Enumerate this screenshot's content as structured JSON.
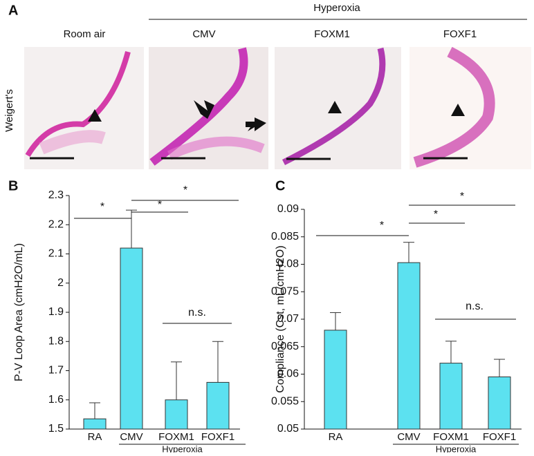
{
  "panel_a": {
    "panel": "A",
    "group": "Hyperoxia",
    "columns": [
      "Room air",
      "CMV",
      "FOXM1",
      "FOXF1"
    ],
    "row_label": "Weigert's"
  },
  "chart_data": [
    {
      "type": "bar",
      "panel": "B",
      "y_label": "P-V Loop Area (cmH2O/mL)",
      "categories": [
        "RA",
        "CMV",
        "FOXM1",
        "FOXF1"
      ],
      "values": [
        1.535,
        2.12,
        1.6,
        1.66
      ],
      "errors": [
        0.055,
        0.13,
        0.13,
        0.14
      ],
      "color": "#5ce1f0",
      "ylim": [
        1.5,
        2.3
      ],
      "yticks": [
        1.5,
        1.6,
        1.7,
        1.8,
        1.9,
        2,
        2.1,
        2.2,
        2.3
      ],
      "group": "Hyperoxia",
      "annotations": [
        "*",
        "*",
        "*",
        "n.s."
      ]
    },
    {
      "type": "bar",
      "panel": "C",
      "y_label": "Compliance (Cst, mL/cmH2O)",
      "categories": [
        "RA",
        "CMV",
        "FOXM1",
        "FOXF1"
      ],
      "values": [
        0.068,
        0.0803,
        0.062,
        0.0595
      ],
      "errors": [
        0.0032,
        0.0037,
        0.004,
        0.0032
      ],
      "color": "#5ce1f0",
      "ylim": [
        0.05,
        0.09
      ],
      "yticks": [
        0.05,
        0.055,
        0.06,
        0.065,
        0.07,
        0.075,
        0.08,
        0.085,
        0.09
      ],
      "group": "Hyperoxia",
      "annotations": [
        "*",
        "*",
        "*",
        "n.s."
      ]
    }
  ]
}
